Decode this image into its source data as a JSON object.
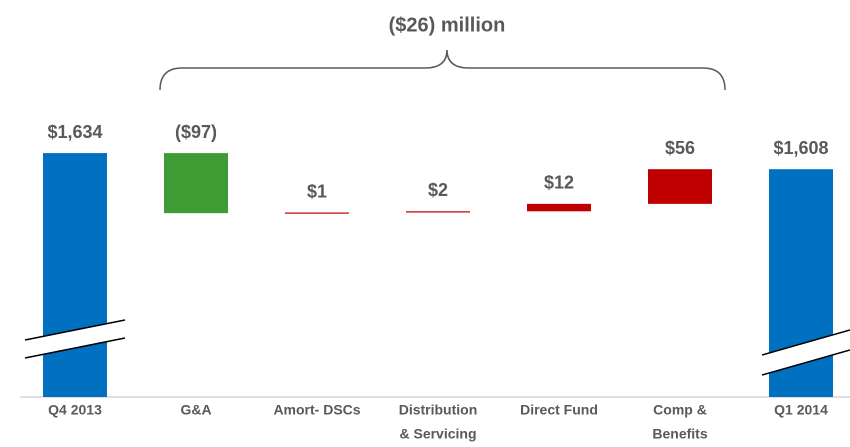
{
  "chart_data": {
    "type": "waterfall",
    "title": "($26) million",
    "categories": [
      [
        "Q4 2013"
      ],
      [
        "G&A"
      ],
      [
        "Amort- DSCs"
      ],
      [
        "Distribution",
        "& Servicing"
      ],
      [
        "Direct Fund"
      ],
      [
        "Comp &",
        "Benefits"
      ],
      [
        "Q1 2014"
      ]
    ],
    "values": [
      1634,
      -97,
      1,
      2,
      12,
      56,
      1608
    ],
    "value_labels": [
      "$1,634",
      "($97)",
      "$1",
      "$2",
      "$12",
      "$56",
      "$1,608"
    ],
    "measure": [
      "absolute",
      "relative",
      "relative",
      "relative",
      "relative",
      "relative",
      "absolute"
    ],
    "colors": [
      "#0070c0",
      "#3f9c35",
      "#c00000",
      "#c00000",
      "#c00000",
      "#c00000",
      "#0070c0"
    ],
    "ylim": [
      1240,
      1660
    ]
  }
}
